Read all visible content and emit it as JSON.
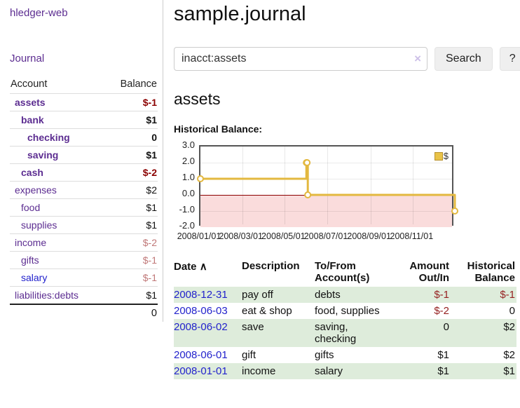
{
  "app": {
    "brand": "hledger-web",
    "nav_journal": "Journal"
  },
  "colors": {
    "link_purple": "#5c2d91",
    "link_blue": "#2222cc",
    "negative_strong": "#8b0000",
    "negative_soft": "#c07878",
    "negative_table": "#962222",
    "row_stripe_green": "#deecdb",
    "chart_negative_fill": "#fadcdc",
    "chart_line_gold": "#e3b83f",
    "chart_zero_line": "#8b0000"
  },
  "sidebar": {
    "headers": {
      "account": "Account",
      "balance": "Balance"
    },
    "accounts": [
      {
        "name": "assets",
        "depth": 1,
        "bold": true,
        "balance": "$-1",
        "balance_class": "neg-strong",
        "link": "purple"
      },
      {
        "name": "bank",
        "depth": 2,
        "bold": true,
        "balance": "$1",
        "balance_class": "pos",
        "link": "purple"
      },
      {
        "name": "checking",
        "depth": 3,
        "bold": true,
        "balance": "0",
        "balance_class": "pos",
        "link": "purple"
      },
      {
        "name": "saving",
        "depth": 3,
        "bold": true,
        "balance": "$1",
        "balance_class": "pos",
        "link": "purple"
      },
      {
        "name": "cash",
        "depth": 2,
        "bold": true,
        "balance": "$-2",
        "balance_class": "neg-strong",
        "link": "purple"
      },
      {
        "name": "expenses",
        "depth": 1,
        "bold": false,
        "balance": "$2",
        "balance_class": "pos",
        "link": "purple"
      },
      {
        "name": "food",
        "depth": 2,
        "bold": false,
        "balance": "$1",
        "balance_class": "pos",
        "link": "purple"
      },
      {
        "name": "supplies",
        "depth": 2,
        "bold": false,
        "balance": "$1",
        "balance_class": "pos",
        "link": "purple"
      },
      {
        "name": "income",
        "depth": 1,
        "bold": false,
        "balance": "$-2",
        "balance_class": "neg-soft",
        "link": "purple"
      },
      {
        "name": "gifts",
        "depth": 2,
        "bold": false,
        "balance": "$-1",
        "balance_class": "neg-soft",
        "link": "purple"
      },
      {
        "name": "salary",
        "depth": 2,
        "bold": false,
        "balance": "$-1",
        "balance_class": "neg-soft",
        "link": "blue"
      },
      {
        "name": "liabilities:debts",
        "depth": 1,
        "bold": false,
        "balance": "$1",
        "balance_class": "pos",
        "link": "purple"
      }
    ],
    "total": "0"
  },
  "header": {
    "title": "sample.journal"
  },
  "search": {
    "value": "inacct:assets",
    "clear_icon": "×",
    "button_label": "Search",
    "help_label": "?"
  },
  "account_page": {
    "heading": "assets",
    "chart_label": "Historical Balance:"
  },
  "chart_data": {
    "type": "line",
    "title": "Historical Balance",
    "step": true,
    "series": [
      {
        "name": "$",
        "points": [
          {
            "date": "2008-01-01",
            "value": 1
          },
          {
            "date": "2008-06-01",
            "value": 2
          },
          {
            "date": "2008-06-02",
            "value": 2
          },
          {
            "date": "2008-06-03",
            "value": 0
          },
          {
            "date": "2008-12-31",
            "value": -1
          }
        ]
      }
    ],
    "x_range": [
      "2008-01-01",
      "2008-12-31"
    ],
    "x_ticks": [
      "2008/01/01",
      "2008/03/01",
      "2008/05/01",
      "2008/07/01",
      "2008/09/01",
      "2008/11/01"
    ],
    "y_ticks": [
      "3.0",
      "2.0",
      "1.0",
      "0.0",
      "-1.0",
      "-2.0"
    ],
    "ylim": [
      -2,
      3
    ],
    "grid": true,
    "legend": "$",
    "legend_position": "top-right"
  },
  "register": {
    "columns": [
      "Date",
      "Description",
      "To/From Account(s)",
      "Amount Out/In",
      "Historical Balance"
    ],
    "sort_indicator": "∧",
    "rows": [
      {
        "date": "2008-12-31",
        "description": "pay off",
        "accounts": "debts",
        "amount": "$-1",
        "amount_neg": true,
        "balance": "$-1",
        "balance_neg": true
      },
      {
        "date": "2008-06-03",
        "description": "eat & shop",
        "accounts": "food, supplies",
        "amount": "$-2",
        "amount_neg": true,
        "balance": "0",
        "balance_neg": false
      },
      {
        "date": "2008-06-02",
        "description": "save",
        "accounts": "saving, checking",
        "amount": "0",
        "amount_neg": false,
        "balance": "$2",
        "balance_neg": false
      },
      {
        "date": "2008-06-01",
        "description": "gift",
        "accounts": "gifts",
        "amount": "$1",
        "amount_neg": false,
        "balance": "$2",
        "balance_neg": false
      },
      {
        "date": "2008-01-01",
        "description": "income",
        "accounts": "salary",
        "amount": "$1",
        "amount_neg": false,
        "balance": "$1",
        "balance_neg": false
      }
    ]
  }
}
